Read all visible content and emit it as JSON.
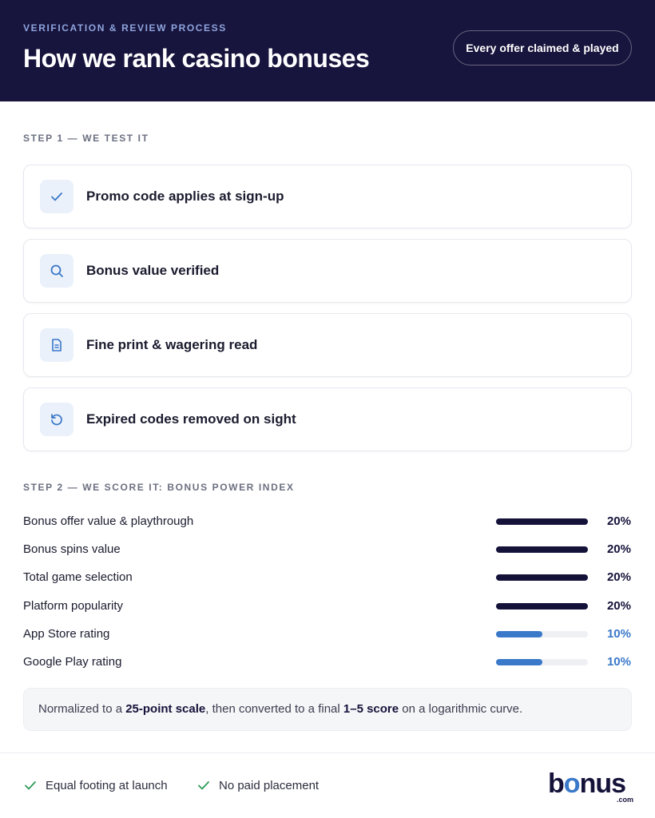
{
  "header": {
    "eyebrow": "VERIFICATION & REVIEW PROCESS",
    "title": "How we rank casino bonuses",
    "badge": "Every offer claimed & played"
  },
  "step1": {
    "heading": "STEP 1 — WE TEST IT",
    "items": [
      "Promo code applies at sign-up",
      "Bonus value verified",
      "Fine print & wagering read",
      "Expired codes removed on sight"
    ]
  },
  "step2": {
    "heading": "STEP 2 — WE SCORE IT: BONUS POWER INDEX",
    "rows": [
      {
        "label": "Bonus offer value & playthrough",
        "weight": 20,
        "weight_label": "20%",
        "color": "#15123a"
      },
      {
        "label": "Bonus spins value",
        "weight": 20,
        "weight_label": "20%",
        "color": "#15123a"
      },
      {
        "label": "Total game selection",
        "weight": 20,
        "weight_label": "20%",
        "color": "#15123a"
      },
      {
        "label": "Platform popularity",
        "weight": 20,
        "weight_label": "20%",
        "color": "#15123a"
      },
      {
        "label": "App Store rating",
        "weight": 10,
        "weight_label": "10%",
        "color": "#3a78c9"
      },
      {
        "label": "Google Play rating",
        "weight": 10,
        "weight_label": "10%",
        "color": "#3a78c9"
      }
    ],
    "note": [
      "Normalized to a ",
      "25-point scale",
      ", then converted to a final ",
      "1–5 score",
      " on a logarithmic curve."
    ]
  },
  "footer": {
    "points": [
      "Equal footing at launch",
      "No paid placement"
    ],
    "logo": [
      "b",
      "o",
      "nus"
    ],
    "logo_suffix": ".com"
  }
}
